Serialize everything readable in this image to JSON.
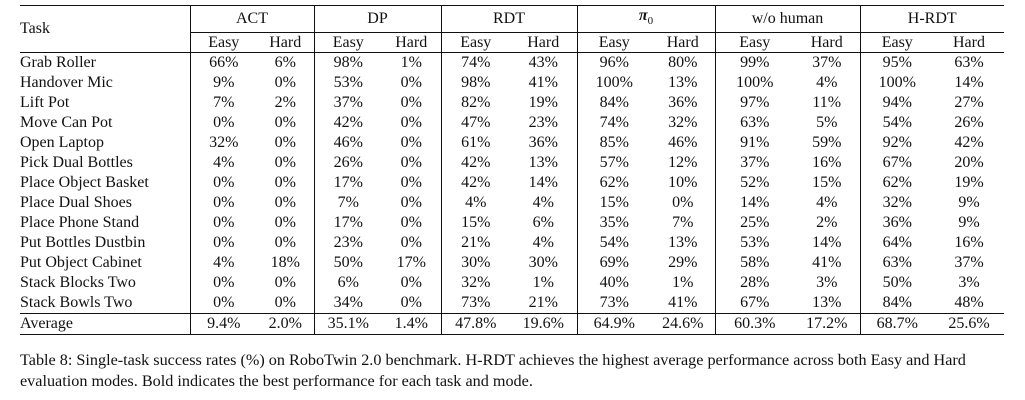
{
  "table": {
    "task_header": "Task",
    "groups": [
      {
        "label": "ACT"
      },
      {
        "label": "DP"
      },
      {
        "label": "RDT"
      },
      {
        "label": "π",
        "sub": "0"
      },
      {
        "label": "w/o human"
      },
      {
        "label": "H-RDT"
      }
    ],
    "mode_labels": [
      "Easy",
      "Hard"
    ],
    "rows": [
      {
        "task": "Grab Roller",
        "cells": [
          [
            "66%",
            0
          ],
          [
            "6%",
            0
          ],
          [
            "98%",
            0
          ],
          [
            "1%",
            0
          ],
          [
            "74%",
            0
          ],
          [
            "43%",
            0
          ],
          [
            "96%",
            0
          ],
          [
            "80%",
            1
          ],
          [
            "99%",
            1
          ],
          [
            "37%",
            0
          ],
          [
            "95%",
            0
          ],
          [
            "63%",
            0
          ]
        ]
      },
      {
        "task": "Handover Mic",
        "cells": [
          [
            "9%",
            0
          ],
          [
            "0%",
            0
          ],
          [
            "53%",
            0
          ],
          [
            "0%",
            0
          ],
          [
            "98%",
            0
          ],
          [
            "41%",
            0
          ],
          [
            "100%",
            1
          ],
          [
            "13%",
            0
          ],
          [
            "100%",
            1
          ],
          [
            "4%",
            0
          ],
          [
            "100%",
            1
          ],
          [
            "14%",
            1
          ]
        ]
      },
      {
        "task": "Lift Pot",
        "cells": [
          [
            "7%",
            0
          ],
          [
            "2%",
            0
          ],
          [
            "37%",
            0
          ],
          [
            "0%",
            0
          ],
          [
            "82%",
            0
          ],
          [
            "19%",
            0
          ],
          [
            "84%",
            0
          ],
          [
            "36%",
            1
          ],
          [
            "97%",
            1
          ],
          [
            "11%",
            0
          ],
          [
            "94%",
            0
          ],
          [
            "27%",
            0
          ]
        ]
      },
      {
        "task": "Move Can Pot",
        "cells": [
          [
            "0%",
            0
          ],
          [
            "0%",
            0
          ],
          [
            "42%",
            0
          ],
          [
            "0%",
            0
          ],
          [
            "47%",
            0
          ],
          [
            "23%",
            0
          ],
          [
            "74%",
            1
          ],
          [
            "32%",
            1
          ],
          [
            "63%",
            0
          ],
          [
            "5%",
            0
          ],
          [
            "54%",
            0
          ],
          [
            "26%",
            0
          ]
        ]
      },
      {
        "task": "Open Laptop",
        "cells": [
          [
            "32%",
            0
          ],
          [
            "0%",
            0
          ],
          [
            "46%",
            0
          ],
          [
            "0%",
            0
          ],
          [
            "61%",
            0
          ],
          [
            "36%",
            0
          ],
          [
            "85%",
            0
          ],
          [
            "46%",
            0
          ],
          [
            "91%",
            0
          ],
          [
            "59%",
            1
          ],
          [
            "92%",
            1
          ],
          [
            "42%",
            0
          ]
        ]
      },
      {
        "task": "Pick Dual Bottles",
        "cells": [
          [
            "4%",
            0
          ],
          [
            "0%",
            0
          ],
          [
            "26%",
            0
          ],
          [
            "0%",
            0
          ],
          [
            "42%",
            0
          ],
          [
            "13%",
            0
          ],
          [
            "57%",
            0
          ],
          [
            "12%",
            0
          ],
          [
            "37%",
            0
          ],
          [
            "16%",
            0
          ],
          [
            "67%",
            1
          ],
          [
            "20%",
            1
          ]
        ]
      },
      {
        "task": "Place Object Basket",
        "cells": [
          [
            "0%",
            0
          ],
          [
            "0%",
            0
          ],
          [
            "17%",
            0
          ],
          [
            "0%",
            0
          ],
          [
            "42%",
            0
          ],
          [
            "14%",
            0
          ],
          [
            "62%",
            1
          ],
          [
            "10%",
            0
          ],
          [
            "52%",
            0
          ],
          [
            "15%",
            0
          ],
          [
            "62%",
            1
          ],
          [
            "19%",
            1
          ]
        ]
      },
      {
        "task": "Place Dual Shoes",
        "cells": [
          [
            "0%",
            0
          ],
          [
            "0%",
            0
          ],
          [
            "7%",
            0
          ],
          [
            "0%",
            0
          ],
          [
            "4%",
            0
          ],
          [
            "4%",
            0
          ],
          [
            "15%",
            0
          ],
          [
            "0%",
            0
          ],
          [
            "14%",
            0
          ],
          [
            "4%",
            0
          ],
          [
            "32%",
            1
          ],
          [
            "9%",
            1
          ]
        ]
      },
      {
        "task": "Place Phone Stand",
        "cells": [
          [
            "0%",
            0
          ],
          [
            "0%",
            0
          ],
          [
            "17%",
            0
          ],
          [
            "0%",
            0
          ],
          [
            "15%",
            0
          ],
          [
            "6%",
            0
          ],
          [
            "35%",
            0
          ],
          [
            "7%",
            0
          ],
          [
            "25%",
            0
          ],
          [
            "2%",
            0
          ],
          [
            "36%",
            1
          ],
          [
            "9%",
            1
          ]
        ]
      },
      {
        "task": "Put Bottles Dustbin",
        "cells": [
          [
            "0%",
            0
          ],
          [
            "0%",
            0
          ],
          [
            "23%",
            0
          ],
          [
            "0%",
            0
          ],
          [
            "21%",
            0
          ],
          [
            "4%",
            0
          ],
          [
            "54%",
            0
          ],
          [
            "13%",
            0
          ],
          [
            "53%",
            0
          ],
          [
            "14%",
            0
          ],
          [
            "64%",
            1
          ],
          [
            "16%",
            1
          ]
        ]
      },
      {
        "task": "Put Object Cabinet",
        "cells": [
          [
            "4%",
            0
          ],
          [
            "18%",
            0
          ],
          [
            "50%",
            0
          ],
          [
            "17%",
            0
          ],
          [
            "30%",
            0
          ],
          [
            "30%",
            0
          ],
          [
            "69%",
            1
          ],
          [
            "29%",
            0
          ],
          [
            "58%",
            0
          ],
          [
            "41%",
            1
          ],
          [
            "63%",
            0
          ],
          [
            "37%",
            0
          ]
        ]
      },
      {
        "task": "Stack Blocks Two",
        "cells": [
          [
            "0%",
            0
          ],
          [
            "0%",
            0
          ],
          [
            "6%",
            0
          ],
          [
            "0%",
            0
          ],
          [
            "32%",
            0
          ],
          [
            "1%",
            0
          ],
          [
            "40%",
            0
          ],
          [
            "1%",
            0
          ],
          [
            "28%",
            0
          ],
          [
            "3%",
            1
          ],
          [
            "50%",
            1
          ],
          [
            "3%",
            1
          ]
        ]
      },
      {
        "task": "Stack Bowls Two",
        "cells": [
          [
            "0%",
            0
          ],
          [
            "0%",
            0
          ],
          [
            "34%",
            0
          ],
          [
            "0%",
            0
          ],
          [
            "73%",
            0
          ],
          [
            "21%",
            0
          ],
          [
            "73%",
            0
          ],
          [
            "41%",
            0
          ],
          [
            "67%",
            0
          ],
          [
            "13%",
            0
          ],
          [
            "84%",
            1
          ],
          [
            "48%",
            1
          ]
        ]
      }
    ],
    "average": {
      "task": "Average",
      "cells": [
        [
          "9.4%",
          0
        ],
        [
          "2.0%",
          0
        ],
        [
          "35.1%",
          0
        ],
        [
          "1.4%",
          0
        ],
        [
          "47.8%",
          0
        ],
        [
          "19.6%",
          0
        ],
        [
          "64.9%",
          0
        ],
        [
          "24.6%",
          0
        ],
        [
          "60.3%",
          0
        ],
        [
          "17.2%",
          0
        ],
        [
          "68.7%",
          1
        ],
        [
          "25.6%",
          1
        ]
      ]
    }
  },
  "caption": "Table 8: Single-task success rates (%) on RoboTwin 2.0 benchmark. H-RDT achieves the highest average performance across both Easy and Hard evaluation modes. Bold indicates the best performance for each task and mode."
}
